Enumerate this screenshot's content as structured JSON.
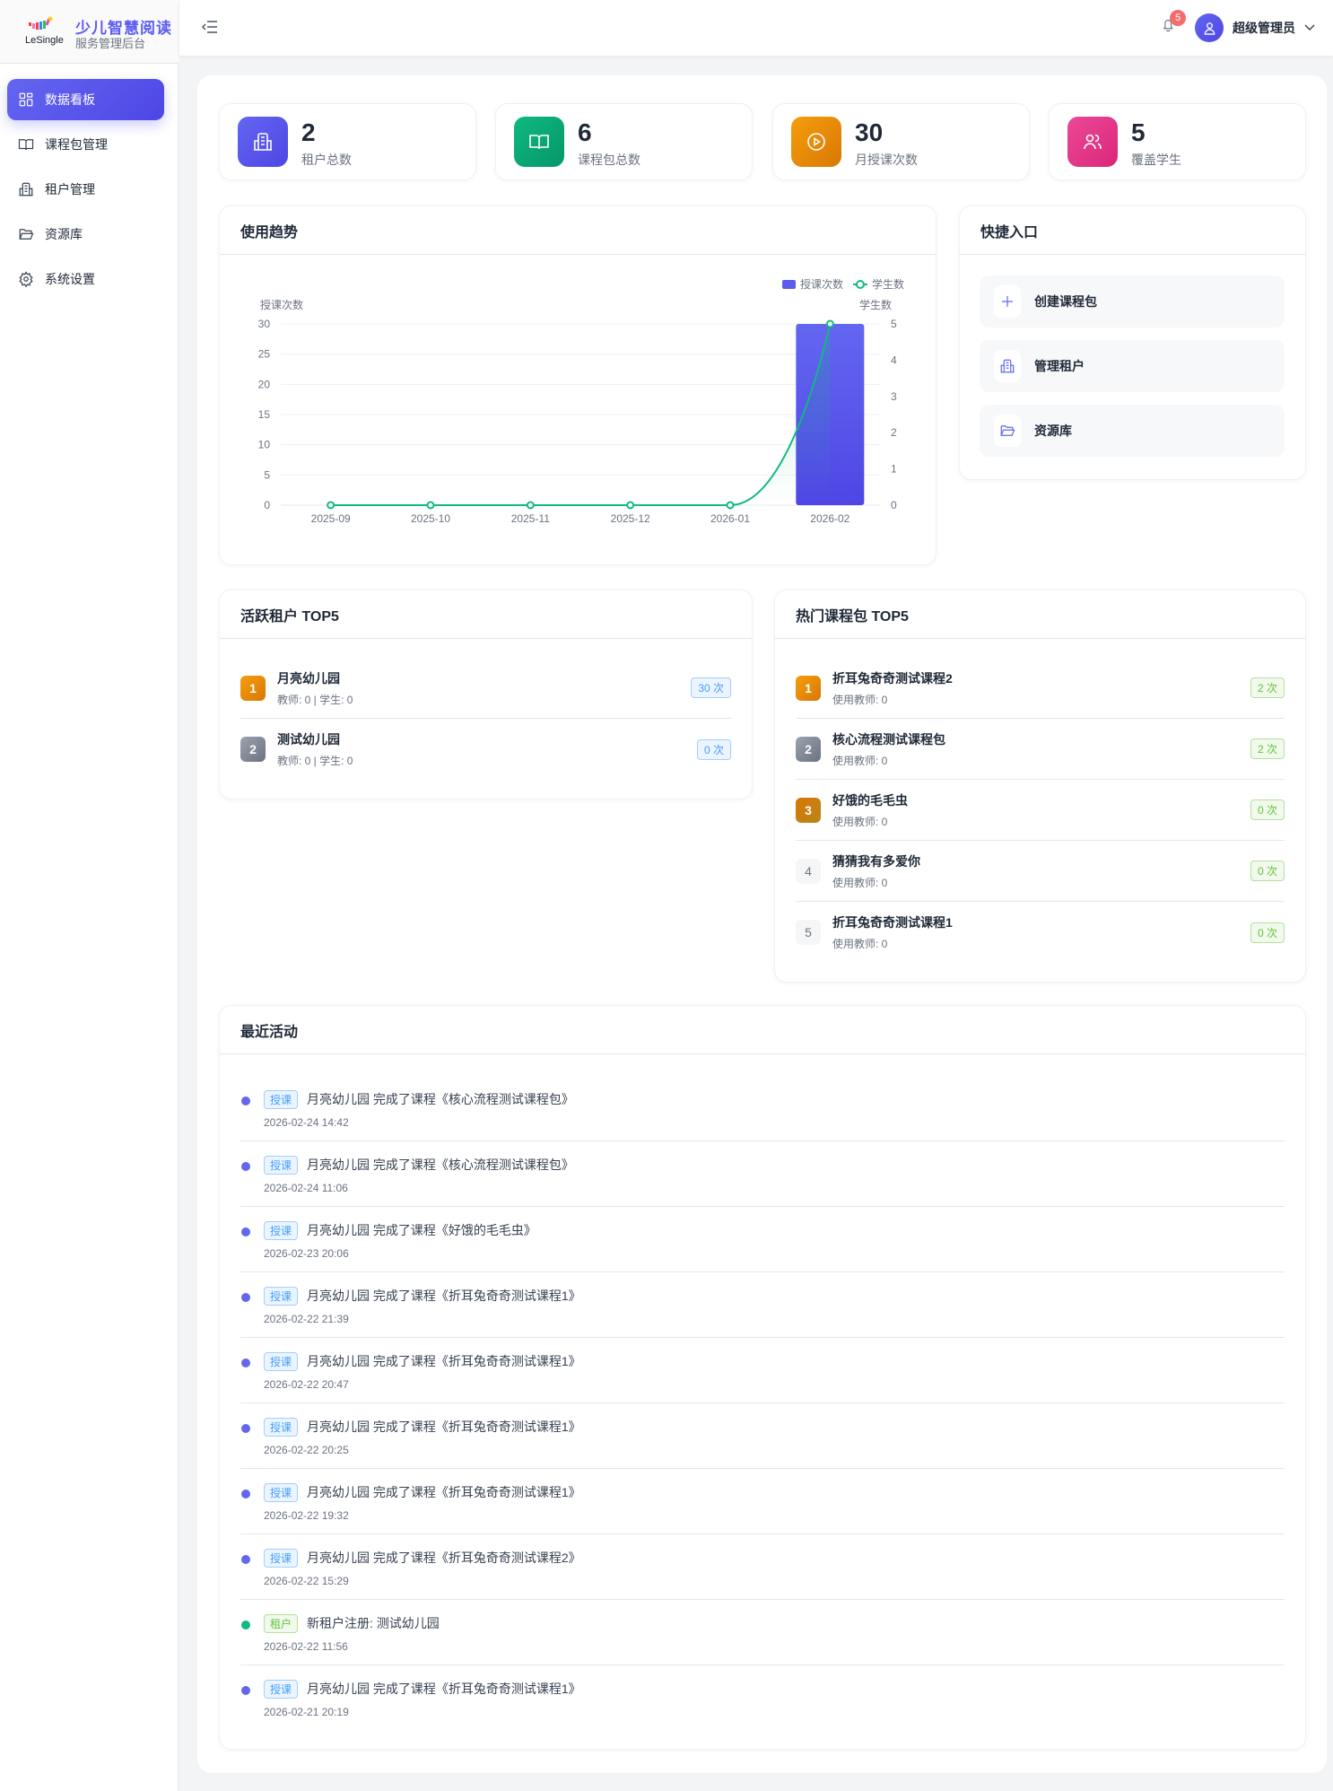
{
  "brand": {
    "logo_text": "LeSingle",
    "title": "少儿智慧阅读",
    "subtitle": "服务管理后台"
  },
  "sidebar": {
    "items": [
      {
        "label": "数据看板",
        "icon": "dashboard-icon",
        "active": true
      },
      {
        "label": "课程包管理",
        "icon": "book-icon"
      },
      {
        "label": "租户管理",
        "icon": "building-icon"
      },
      {
        "label": "资源库",
        "icon": "folder-icon"
      },
      {
        "label": "系统设置",
        "icon": "gear-icon"
      }
    ]
  },
  "header": {
    "notification_count": "5",
    "user_name": "超级管理员"
  },
  "stats": [
    {
      "value": "2",
      "label": "租户总数",
      "icon": "building-icon",
      "color": "#5b5bf0"
    },
    {
      "value": "6",
      "label": "课程包总数",
      "icon": "book-icon",
      "color": "#10b981"
    },
    {
      "value": "30",
      "label": "月授课次数",
      "icon": "play-circle-icon",
      "color": "#f59e0b"
    },
    {
      "value": "5",
      "label": "覆盖学生",
      "icon": "users-icon",
      "color": "#ec4899"
    }
  ],
  "trend": {
    "title": "使用趋势"
  },
  "chart_data": {
    "type": "bar+line",
    "categories": [
      "2025-09",
      "2025-10",
      "2025-11",
      "2025-12",
      "2026-01",
      "2026-02"
    ],
    "series": [
      {
        "name": "授课次数",
        "type": "bar",
        "axis": "left",
        "values": [
          0,
          0,
          0,
          0,
          0,
          30
        ],
        "color": "#5b5bf0"
      },
      {
        "name": "学生数",
        "type": "line",
        "axis": "right",
        "smooth": true,
        "values": [
          0,
          0,
          0,
          0,
          0,
          5
        ],
        "color": "#10b981"
      }
    ],
    "y_left": {
      "label": "授课次数",
      "range": [
        0,
        30
      ],
      "ticks": [
        "0",
        "5",
        "10",
        "15",
        "20",
        "25",
        "30"
      ]
    },
    "y_right": {
      "label": "学生数",
      "range": [
        0,
        5
      ],
      "ticks": [
        "0",
        "1",
        "2",
        "3",
        "4",
        "5"
      ]
    },
    "grid": true,
    "legend": "top-right"
  },
  "quick": {
    "title": "快捷入口",
    "items": [
      {
        "label": "创建课程包",
        "icon": "plus-icon"
      },
      {
        "label": "管理租户",
        "icon": "building-icon"
      },
      {
        "label": "资源库",
        "icon": "folder-icon"
      }
    ]
  },
  "tenants": {
    "title": "活跃租户 TOP5",
    "items": [
      {
        "rank": "1",
        "name": "月亮幼儿园",
        "sub": "教师: 0 | 学生: 0",
        "count": "30 次"
      },
      {
        "rank": "2",
        "name": "测试幼儿园",
        "sub": "教师: 0 | 学生: 0",
        "count": "0 次"
      }
    ]
  },
  "courses": {
    "title": "热门课程包 TOP5",
    "items": [
      {
        "rank": "1",
        "name": "折耳兔奇奇测试课程2",
        "sub": "使用教师: 0",
        "count": "2 次"
      },
      {
        "rank": "2",
        "name": "核心流程测试课程包",
        "sub": "使用教师: 0",
        "count": "2 次"
      },
      {
        "rank": "3",
        "name": "好饿的毛毛虫",
        "sub": "使用教师: 0",
        "count": "0 次"
      },
      {
        "rank": "4",
        "name": "猜猜我有多爱你",
        "sub": "使用教师: 0",
        "count": "0 次"
      },
      {
        "rank": "5",
        "name": "折耳兔奇奇测试课程1",
        "sub": "使用教师: 0",
        "count": "0 次"
      }
    ]
  },
  "activity": {
    "title": "最近活动",
    "items": [
      {
        "tag": "授课",
        "kind": "class",
        "text": "月亮幼儿园 完成了课程《核心流程测试课程包》",
        "time": "2026-02-24 14:42"
      },
      {
        "tag": "授课",
        "kind": "class",
        "text": "月亮幼儿园 完成了课程《核心流程测试课程包》",
        "time": "2026-02-24 11:06"
      },
      {
        "tag": "授课",
        "kind": "class",
        "text": "月亮幼儿园 完成了课程《好饿的毛毛虫》",
        "time": "2026-02-23 20:06"
      },
      {
        "tag": "授课",
        "kind": "class",
        "text": "月亮幼儿园 完成了课程《折耳兔奇奇测试课程1》",
        "time": "2026-02-22 21:39"
      },
      {
        "tag": "授课",
        "kind": "class",
        "text": "月亮幼儿园 完成了课程《折耳兔奇奇测试课程1》",
        "time": "2026-02-22 20:47"
      },
      {
        "tag": "授课",
        "kind": "class",
        "text": "月亮幼儿园 完成了课程《折耳兔奇奇测试课程1》",
        "time": "2026-02-22 20:25"
      },
      {
        "tag": "授课",
        "kind": "class",
        "text": "月亮幼儿园 完成了课程《折耳兔奇奇测试课程1》",
        "time": "2026-02-22 19:32"
      },
      {
        "tag": "授课",
        "kind": "class",
        "text": "月亮幼儿园 完成了课程《折耳兔奇奇测试课程2》",
        "time": "2026-02-22 15:29"
      },
      {
        "tag": "租户",
        "kind": "tenant",
        "text": "新租户注册: 测试幼儿园",
        "time": "2026-02-22 11:56"
      },
      {
        "tag": "授课",
        "kind": "class",
        "text": "月亮幼儿园 完成了课程《折耳兔奇奇测试课程1》",
        "time": "2026-02-21 20:19"
      }
    ]
  }
}
